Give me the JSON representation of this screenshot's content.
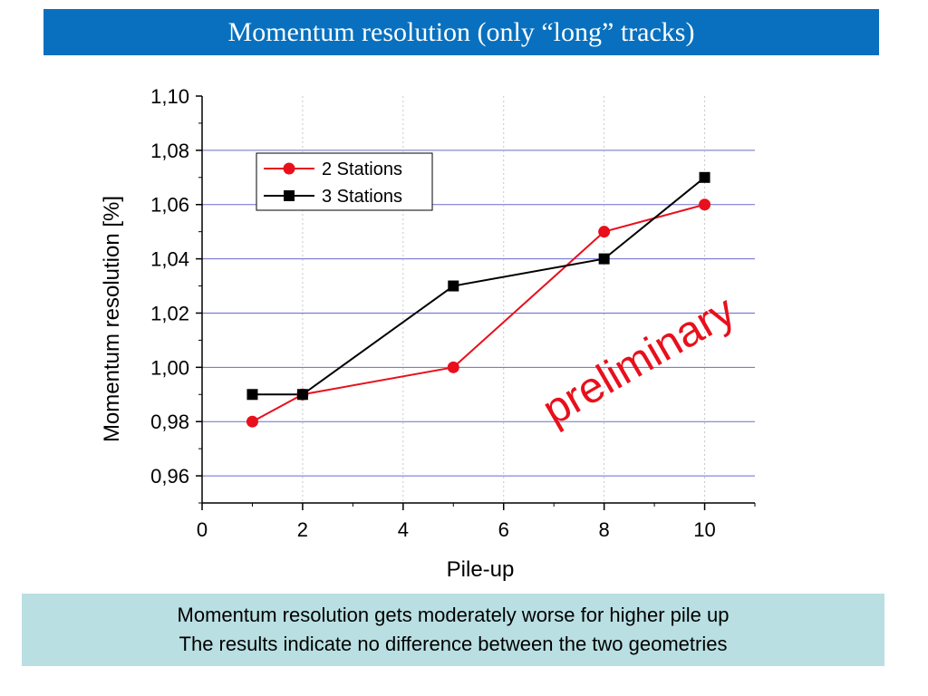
{
  "slide": {
    "title": "Momentum resolution (only “long” tracks)",
    "watermark": "preliminary",
    "watermark_color": "#e8101c",
    "header_color": "#0870be",
    "note_background": "#b9dfe2",
    "notes": [
      "Momentum resolution gets moderately worse for higher pile up",
      "The results indicate no difference between the two geometries"
    ]
  },
  "chart_data": {
    "type": "line",
    "title": "",
    "xlabel": "Pile-up",
    "ylabel": "Momentum resolution [%]",
    "xlim": [
      0,
      11
    ],
    "ylim": [
      0.95,
      1.1
    ],
    "x_ticks": [
      "0",
      "2",
      "4",
      "6",
      "8",
      "10"
    ],
    "y_ticks": [
      "0,96",
      "0,98",
      "1,00",
      "1,02",
      "1,04",
      "1,06",
      "1,08",
      "1,10"
    ],
    "grid": "horizontal",
    "grid_color": "#6a6acf",
    "legend_position": "top-left",
    "series": [
      {
        "name": "2 Stations",
        "color": "#e8101c",
        "marker": "circle",
        "x": [
          1,
          2,
          5,
          8,
          10
        ],
        "y": [
          0.98,
          0.99,
          1.0,
          1.05,
          1.06
        ]
      },
      {
        "name": "3 Stations",
        "color": "#000000",
        "marker": "square",
        "x": [
          1,
          2,
          5,
          8,
          10
        ],
        "y": [
          0.99,
          0.99,
          1.03,
          1.04,
          1.07
        ]
      }
    ]
  }
}
